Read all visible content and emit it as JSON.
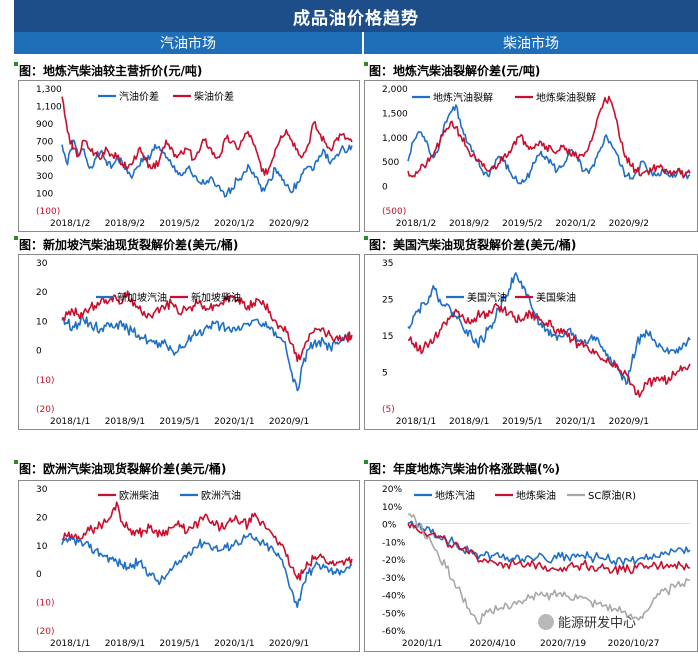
{
  "header": {
    "title": "成品油价格趋势",
    "left_section": "汽油市场",
    "right_section": "柴油市场"
  },
  "watermark": "能源研发中心",
  "chart_data": [
    {
      "type": "line",
      "title": "图：地炼汽柴油较主营折价(元/吨)",
      "yticks": [
        "1,300",
        "1,100",
        "900",
        "700",
        "500",
        "300",
        "100",
        "(100)"
      ],
      "ylim": [
        -100,
        1300
      ],
      "xticks": [
        "2018/1/2",
        "2018/9/2",
        "2019/5/2",
        "2020/1/2",
        "2020/9/2"
      ],
      "xrange": [
        "2018/1/2",
        "2021/3/31"
      ],
      "legend": "top",
      "series": [
        {
          "name": "汽油价差",
          "color": "#1f6fc5",
          "values": [
            650,
            420,
            700,
            520,
            600,
            380,
            480,
            560,
            470,
            380,
            500,
            450,
            320,
            300,
            400,
            520,
            480,
            650,
            580,
            500,
            420,
            350,
            300,
            380,
            280,
            220,
            200,
            260,
            180,
            120,
            60,
            150,
            250,
            300,
            420,
            330,
            200,
            120,
            250,
            380,
            300,
            180,
            100,
            220,
            320,
            400,
            360,
            520,
            580,
            430,
            520,
            600,
            560,
            640
          ]
        },
        {
          "name": "柴油价差",
          "color": "#c8102e",
          "values": [
            1200,
            800,
            600,
            520,
            700,
            600,
            550,
            480,
            620,
            540,
            500,
            430,
            380,
            450,
            600,
            480,
            420,
            380,
            520,
            700,
            620,
            500,
            550,
            600,
            480,
            560,
            700,
            620,
            500,
            540,
            720,
            680,
            600,
            700,
            800,
            650,
            480,
            300,
            400,
            600,
            750,
            820,
            700,
            600,
            520,
            650,
            900,
            780,
            680,
            600,
            700,
            760,
            720,
            680
          ]
        }
      ]
    },
    {
      "type": "line",
      "title": "图：地炼汽柴油裂解价差(元/吨)",
      "yticks": [
        "2,000",
        "1,500",
        "1,000",
        "500",
        "0",
        "(500)"
      ],
      "ylim": [
        -500,
        2000
      ],
      "xticks": [
        "2018/1/2",
        "2018/9/2",
        "2019/5/2",
        "2020/1/2",
        "2020/9/2"
      ],
      "xrange": [
        "2018/1/2",
        "2021/3/31"
      ],
      "legend": "top",
      "series": [
        {
          "name": "地炼汽油裂解",
          "color": "#1f6fc5",
          "values": [
            500,
            900,
            1100,
            1000,
            700,
            600,
            900,
            1300,
            1500,
            1650,
            1200,
            900,
            700,
            500,
            300,
            200,
            400,
            600,
            500,
            300,
            150,
            50,
            100,
            300,
            500,
            700,
            600,
            450,
            300,
            400,
            600,
            700,
            500,
            300,
            250,
            400,
            700,
            1000,
            900,
            700,
            400,
            200,
            150,
            300,
            500,
            300,
            200,
            250,
            300,
            200,
            250,
            300,
            200,
            220
          ]
        },
        {
          "name": "地炼柴油裂解",
          "color": "#c8102e",
          "values": [
            300,
            200,
            300,
            400,
            500,
            700,
            900,
            1100,
            1300,
            1200,
            1000,
            800,
            600,
            500,
            400,
            300,
            350,
            450,
            600,
            700,
            900,
            1000,
            900,
            800,
            850,
            900,
            800,
            750,
            700,
            800,
            650,
            700,
            550,
            600,
            800,
            1100,
            1500,
            1800,
            1750,
            1400,
            900,
            600,
            400,
            300,
            250,
            300,
            350,
            400,
            300,
            250,
            300,
            350,
            200,
            250
          ]
        }
      ]
    },
    {
      "type": "line",
      "title": "图：新加坡汽柴油现货裂解价差(美元/桶)",
      "yticks": [
        "30",
        "20",
        "10",
        "0",
        "(10)",
        "(20)"
      ],
      "ylim": [
        -20,
        30
      ],
      "xticks": [
        "2018/1/1",
        "2018/9/1",
        "2019/5/1",
        "2020/1/1",
        "2020/9/1"
      ],
      "xrange": [
        "2018/1/1",
        "2021/3/31"
      ],
      "legend": "top",
      "series": [
        {
          "name": "新加坡汽油",
          "color": "#1f6fc5",
          "values": [
            10,
            9,
            8,
            9,
            10,
            9,
            8,
            7,
            8,
            9,
            9,
            8,
            7,
            6,
            5,
            4,
            3,
            2,
            1,
            2,
            0,
            -1,
            1,
            3,
            5,
            6,
            7,
            8,
            9,
            8,
            7,
            6,
            7,
            8,
            9,
            10,
            9,
            8,
            7,
            6,
            4,
            0,
            -8,
            -14,
            -5,
            0,
            2,
            3,
            2,
            1,
            2,
            3,
            4,
            4
          ]
        },
        {
          "name": "新加坡柴油",
          "color": "#c8102e",
          "values": [
            11,
            12,
            13,
            12,
            13,
            14,
            15,
            16,
            17,
            18,
            17,
            16,
            20,
            15,
            14,
            13,
            12,
            13,
            14,
            15,
            16,
            14,
            13,
            14,
            15,
            16,
            15,
            14,
            15,
            16,
            17,
            18,
            17,
            16,
            15,
            16,
            17,
            15,
            13,
            10,
            8,
            6,
            2,
            -4,
            0,
            3,
            6,
            7,
            6,
            5,
            4,
            3,
            4,
            5
          ]
        }
      ]
    },
    {
      "type": "line",
      "title": "图：美国汽柴油现货裂解价差(美元/桶)",
      "yticks": [
        "35",
        "25",
        "15",
        "5",
        "(5)"
      ],
      "ylim": [
        -5,
        38
      ],
      "xticks": [
        "2018/1/1",
        "2018/9/1",
        "2019/5/1",
        "2020/1/1",
        "2020/9/1"
      ],
      "xrange": [
        "2018/1/1",
        "2021/3/31"
      ],
      "legend": "top",
      "series": [
        {
          "name": "美国汽油",
          "color": "#1f6fc5",
          "values": [
            19,
            22,
            24,
            26,
            28,
            30,
            27,
            25,
            24,
            22,
            20,
            18,
            16,
            14,
            15,
            18,
            20,
            24,
            28,
            30,
            34,
            32,
            30,
            26,
            22,
            20,
            18,
            16,
            15,
            16,
            18,
            17,
            15,
            14,
            15,
            16,
            14,
            12,
            10,
            8,
            5,
            2,
            8,
            14,
            16,
            17,
            15,
            13,
            12,
            11,
            12,
            13,
            14,
            15
          ]
        },
        {
          "name": "美国柴油",
          "color": "#c8102e",
          "values": [
            15,
            14,
            12,
            13,
            14,
            16,
            18,
            20,
            22,
            24,
            22,
            20,
            21,
            22,
            23,
            22,
            24,
            25,
            24,
            23,
            22,
            21,
            22,
            23,
            22,
            21,
            20,
            19,
            18,
            17,
            16,
            15,
            14,
            13,
            12,
            11,
            10,
            9,
            8,
            7,
            6,
            5,
            2,
            -1,
            0,
            2,
            3,
            4,
            3,
            4,
            5,
            6,
            7,
            8
          ]
        }
      ]
    },
    {
      "type": "line",
      "title": "图：欧洲汽柴油现货裂解价差(美元/桶)",
      "yticks": [
        "30",
        "20",
        "10",
        "0",
        "(10)",
        "(20)"
      ],
      "ylim": [
        -20,
        30
      ],
      "xticks": [
        "2018/1/1",
        "2018/9/1",
        "2019/5/1",
        "2020/1/1",
        "2020/9/1"
      ],
      "xrange": [
        "2018/1/1",
        "2021/3/31"
      ],
      "legend": "top",
      "series": [
        {
          "name": "欧洲柴油",
          "color": "#c8102e",
          "values": [
            12,
            13,
            12,
            13,
            14,
            15,
            16,
            17,
            18,
            20,
            25,
            18,
            16,
            15,
            14,
            15,
            16,
            15,
            14,
            15,
            16,
            17,
            16,
            15,
            16,
            18,
            20,
            18,
            17,
            16,
            17,
            18,
            19,
            18,
            17,
            20,
            18,
            17,
            15,
            13,
            10,
            6,
            2,
            -2,
            0,
            3,
            5,
            6,
            5,
            4,
            3,
            4,
            5,
            5
          ]
        },
        {
          "name": "欧洲汽油",
          "color": "#1f6fc5",
          "values": [
            10,
            11,
            12,
            11,
            10,
            9,
            8,
            7,
            6,
            5,
            4,
            3,
            2,
            3,
            4,
            2,
            0,
            -2,
            -3,
            -1,
            1,
            3,
            5,
            7,
            9,
            10,
            11,
            10,
            9,
            8,
            9,
            10,
            11,
            12,
            13,
            12,
            11,
            10,
            9,
            7,
            5,
            0,
            -6,
            -12,
            -4,
            0,
            2,
            3,
            2,
            1,
            0,
            1,
            2,
            3
          ]
        }
      ]
    },
    {
      "type": "line",
      "title": "图：年度地炼汽柴油价格涨跌幅(%)",
      "yticks": [
        "20%",
        "10%",
        "0%",
        "-10%",
        "-20%",
        "-30%",
        "-40%",
        "-50%",
        "-60%"
      ],
      "ylim": [
        -60,
        20
      ],
      "xticks": [
        "2020/1/1",
        "2020/4/10",
        "2020/7/19",
        "2020/10/27"
      ],
      "xrange": [
        "2020/1/1",
        "2020/12/31"
      ],
      "legend": "top",
      "series": [
        {
          "name": "地炼汽油",
          "color": "#1f6fc5",
          "values": [
            0,
            -1,
            -3,
            -5,
            -7,
            -9,
            -11,
            -14,
            -16,
            -17,
            -18,
            -18,
            -19,
            -19,
            -20,
            -20,
            -19,
            -19,
            -20,
            -20,
            -19,
            -19,
            -19,
            -18,
            -19,
            -19,
            -20,
            -21,
            -21,
            -21,
            -21,
            -20,
            -20,
            -19,
            -17,
            -16,
            -15,
            -15
          ]
        },
        {
          "name": "地炼柴油",
          "color": "#c8102e",
          "values": [
            0,
            -2,
            -4,
            -6,
            -8,
            -10,
            -12,
            -15,
            -17,
            -19,
            -20,
            -21,
            -22,
            -23,
            -23,
            -24,
            -24,
            -23,
            -24,
            -25,
            -25,
            -24,
            -24,
            -23,
            -24,
            -25,
            -25,
            -26,
            -26,
            -26,
            -25,
            -25,
            -24,
            -24,
            -23,
            -23,
            -24,
            -25
          ]
        },
        {
          "name": "SC原油(R)",
          "color": "#a8a8a8",
          "values": [
            5,
            2,
            -5,
            -10,
            -18,
            -25,
            -32,
            -40,
            -48,
            -55,
            -52,
            -50,
            -48,
            -46,
            -44,
            -45,
            -42,
            -40,
            -41,
            -40,
            -39,
            -41,
            -40,
            -42,
            -44,
            -45,
            -46,
            -48,
            -50,
            -52,
            -53,
            -50,
            -45,
            -40,
            -38,
            -36,
            -34,
            -32
          ]
        }
      ]
    }
  ]
}
